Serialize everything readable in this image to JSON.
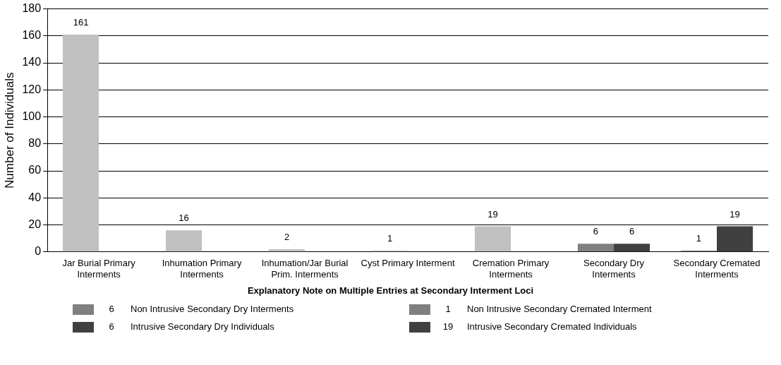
{
  "chart_data": {
    "type": "bar",
    "ylabel": "Number of Individuals",
    "categories": [
      "Jar Burial Primary Interments",
      "Inhumation Primary Interments",
      "Inhumation/Jar Burial Prim. Interments",
      "Cyst Primary Interment",
      "Cremation Primary Interments",
      "Secondary Dry Interments",
      "Secondary Cremated Interments"
    ],
    "series": [
      {
        "colors": [
          "#c0c0c0",
          "#c0c0c0",
          "#c0c0c0",
          "#c0c0c0",
          "#c0c0c0",
          "#808080",
          "#808080"
        ],
        "values": [
          161,
          16,
          2,
          1,
          19,
          6,
          1
        ]
      },
      {
        "color": "#404040",
        "values": [
          null,
          null,
          null,
          null,
          null,
          6,
          19
        ]
      }
    ],
    "ylim": [
      0,
      180
    ],
    "yticks": [
      0,
      20,
      40,
      60,
      80,
      100,
      120,
      140,
      160,
      180
    ],
    "grid": "y",
    "legend": false,
    "data_labels": true,
    "annotations": [
      "Explanatory Note on Multiple Entries at Secondary Interment Loci",
      "6",
      "Non Intrusive Secondary Dry Interments",
      "1",
      "Non Intrusive Secondary Cremated Interment",
      "6",
      "Intrusive Secondary Dry Individuals",
      "19",
      "Intrusive Secondary Cremated Individuals"
    ]
  }
}
